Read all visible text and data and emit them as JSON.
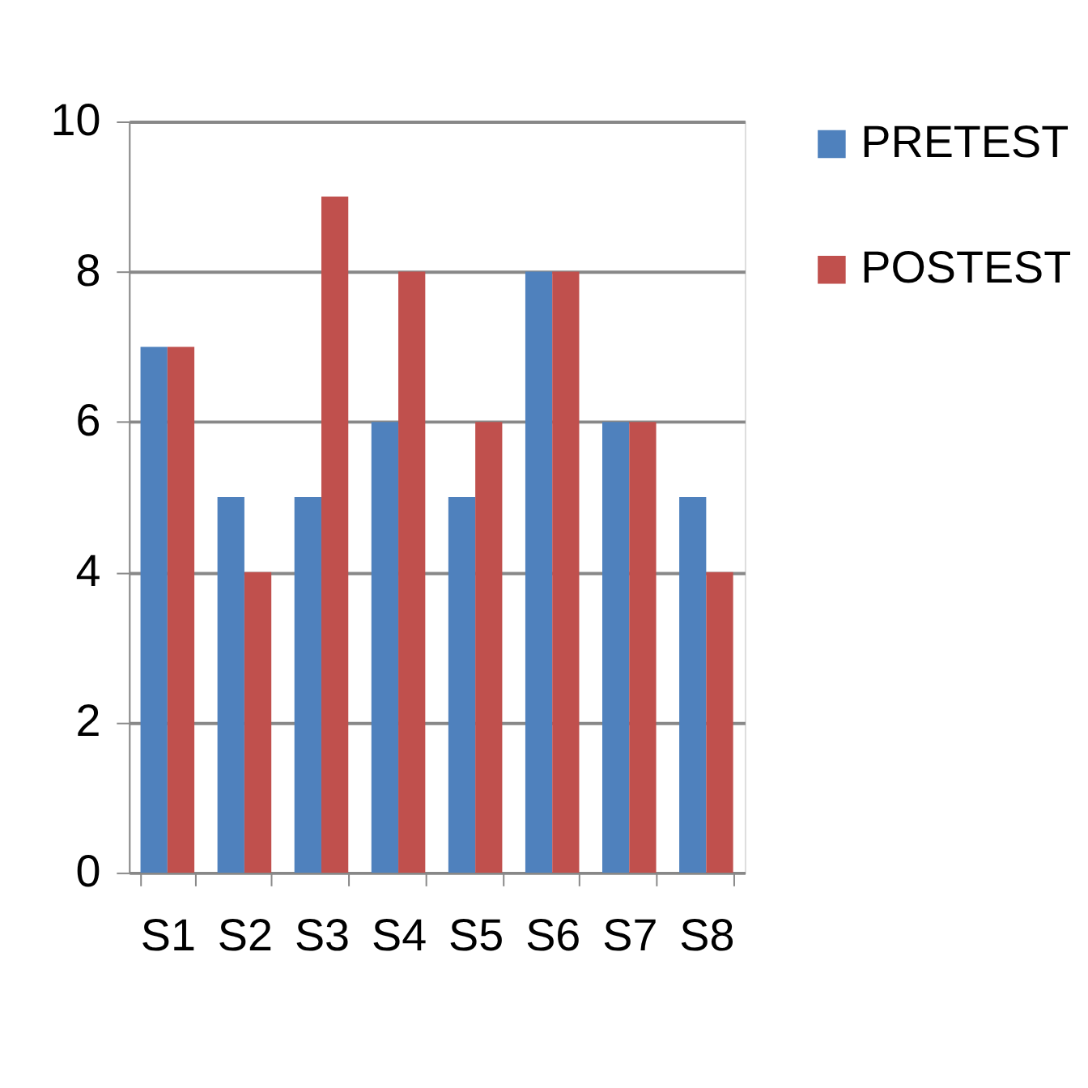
{
  "chart_data": {
    "type": "bar",
    "categories": [
      "S1",
      "S2",
      "S3",
      "S4",
      "S5",
      "S6",
      "S7",
      "S8"
    ],
    "series": [
      {
        "name": "PRETEST",
        "color": "#4f81bd",
        "values": [
          7,
          5,
          5,
          6,
          5,
          8,
          6,
          5
        ]
      },
      {
        "name": "POSTEST",
        "color": "#c0504d",
        "values": [
          7,
          4,
          9,
          8,
          6,
          8,
          6,
          4
        ]
      }
    ],
    "ylim": [
      0,
      10
    ],
    "yticks": [
      0,
      2,
      4,
      6,
      8,
      10
    ],
    "grid": "y",
    "legend": "right"
  }
}
